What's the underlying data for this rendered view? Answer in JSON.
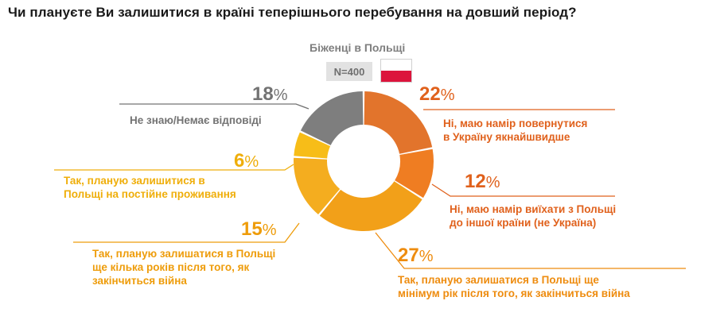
{
  "title": "Чи плануєте Ви залишитися в країні теперішнього перебування на довший період?",
  "subtitle": "Біженці в Польщі",
  "sample": "N=400",
  "chart_data": {
    "type": "pie",
    "title": "Чи плануєте Ви залишитися в країні теперішнього перебування на довший період?",
    "subtitle": "Біженці в Польщі",
    "categories": [
      "Ні, маю намір повернутися в Україну якнайшвидше",
      "Ні, маю намір виїхати з Польщі до іншої країни (не Україна)",
      "Так, планую залишатися в Польщі ще мінімум рік після того, як закінчиться війна",
      "Так, планую залишатися в Польщі ще кілька років після того, як закінчиться війна",
      "Так, планую залишитися в Польщі на постійне проживання",
      "Не знаю/Немає відповіді"
    ],
    "values": [
      22,
      12,
      27,
      15,
      6,
      18
    ],
    "unit": "%",
    "colors": [
      "#e2742c",
      "#ef7d22",
      "#f2a019",
      "#f4ad1f",
      "#f7bd18",
      "#7e7e7e"
    ],
    "label_colors": [
      "#e0611c",
      "#e0611c",
      "#ee8c0f",
      "#ee9c0a",
      "#efae0a",
      "#737373"
    ],
    "label_lines": [
      [
        "Ні, маю намір повернутися",
        "в Україну якнайшвидше"
      ],
      [
        "Ні, маю намір виїхати з Польщі",
        "до іншої країни (не Україна)"
      ],
      [
        "Так, планую залишатися в Польщі ще",
        "мінімум рік після того, як закінчиться війна"
      ],
      [
        "Так, планую залишатися в Польщі",
        "ще кілька років після того, як",
        "закінчиться війна"
      ],
      [
        "Так, планую залишитися в",
        "Польщі на постійне проживання"
      ],
      [
        "Не знаю/Немає відповіді"
      ]
    ]
  }
}
